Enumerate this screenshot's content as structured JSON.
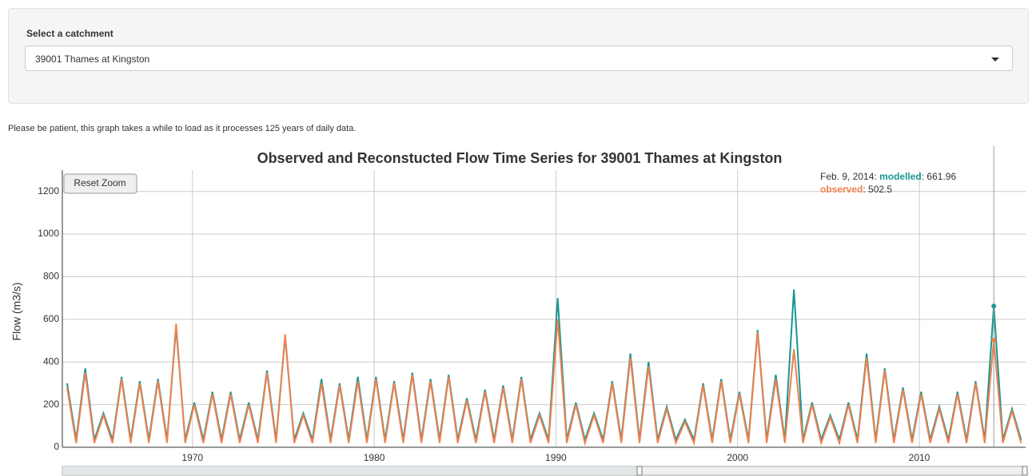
{
  "form": {
    "label": "Select a catchment",
    "selected": "39001 Thames at Kingston"
  },
  "note": "Please be patient, this graph takes a while to load as it processes 125 years of daily data.",
  "reset_button": "Reset Zoom",
  "hover_legend": {
    "date": "Feb. 9, 2014:",
    "items": [
      {
        "label": "modelled",
        "value": "661.96"
      },
      {
        "label": "observed",
        "value": "502.5"
      }
    ]
  },
  "chart_data": {
    "type": "line",
    "title": "Observed and Reconstucted Flow Time Series for 39001 Thames at Kingston",
    "y_label": "Flow (m3/s)",
    "x": [
      1963.1,
      1963.6,
      1964.1,
      1964.6,
      1965.1,
      1965.6,
      1966.1,
      1966.6,
      1967.1,
      1967.6,
      1968.1,
      1968.6,
      1969.1,
      1969.6,
      1970.1,
      1970.6,
      1971.1,
      1971.6,
      1972.1,
      1972.6,
      1973.1,
      1973.6,
      1974.1,
      1974.6,
      1975.1,
      1975.6,
      1976.1,
      1976.6,
      1977.1,
      1977.6,
      1978.1,
      1978.6,
      1979.1,
      1979.6,
      1980.1,
      1980.6,
      1981.1,
      1981.6,
      1982.1,
      1982.6,
      1983.1,
      1983.6,
      1984.1,
      1984.6,
      1985.1,
      1985.6,
      1986.1,
      1986.6,
      1987.1,
      1987.6,
      1988.1,
      1988.6,
      1989.1,
      1989.6,
      1990.1,
      1990.6,
      1991.1,
      1991.6,
      1992.1,
      1992.6,
      1993.1,
      1993.6,
      1994.1,
      1994.6,
      1995.1,
      1995.6,
      1996.1,
      1996.6,
      1997.1,
      1997.6,
      1998.1,
      1998.6,
      1999.1,
      1999.6,
      2000.1,
      2000.6,
      2001.1,
      2001.6,
      2002.1,
      2002.6,
      2003.1,
      2003.6,
      2004.1,
      2004.6,
      2005.1,
      2005.6,
      2006.1,
      2006.6,
      2007.1,
      2007.6,
      2008.1,
      2008.6,
      2009.1,
      2009.6,
      2010.1,
      2010.6,
      2011.1,
      2011.6,
      2012.1,
      2012.6,
      2013.1,
      2013.6,
      2014.1,
      2014.6,
      2015.1,
      2015.6
    ],
    "series": [
      {
        "name": "modelled",
        "color": "#1a9690",
        "values": [
          300,
          35,
          370,
          35,
          160,
          35,
          330,
          35,
          310,
          35,
          320,
          35,
          560,
          35,
          210,
          35,
          260,
          35,
          260,
          35,
          210,
          35,
          360,
          35,
          520,
          35,
          160,
          35,
          320,
          35,
          300,
          35,
          330,
          35,
          330,
          35,
          310,
          35,
          350,
          35,
          320,
          35,
          340,
          35,
          230,
          35,
          270,
          35,
          290,
          35,
          330,
          35,
          160,
          35,
          700,
          35,
          210,
          35,
          160,
          35,
          310,
          35,
          440,
          35,
          400,
          35,
          190,
          35,
          130,
          35,
          300,
          35,
          320,
          35,
          260,
          35,
          550,
          35,
          340,
          35,
          740,
          35,
          210,
          35,
          150,
          35,
          210,
          35,
          440,
          35,
          370,
          35,
          280,
          35,
          260,
          35,
          190,
          35,
          260,
          35,
          310,
          35,
          661.96,
          35,
          180,
          35
        ]
      },
      {
        "name": "observed",
        "color": "#f08050",
        "values": [
          280,
          20,
          350,
          20,
          150,
          20,
          320,
          20,
          300,
          20,
          310,
          20,
          580,
          20,
          200,
          20,
          250,
          20,
          250,
          20,
          200,
          20,
          350,
          20,
          530,
          20,
          150,
          20,
          300,
          20,
          290,
          20,
          310,
          20,
          320,
          20,
          300,
          20,
          340,
          20,
          310,
          20,
          330,
          20,
          220,
          20,
          260,
          20,
          280,
          20,
          320,
          20,
          150,
          20,
          600,
          20,
          200,
          20,
          150,
          20,
          300,
          20,
          420,
          20,
          380,
          20,
          180,
          20,
          120,
          20,
          290,
          20,
          310,
          20,
          250,
          20,
          540,
          20,
          320,
          20,
          460,
          20,
          200,
          20,
          140,
          20,
          200,
          20,
          420,
          20,
          360,
          20,
          270,
          20,
          250,
          20,
          180,
          20,
          250,
          20,
          300,
          20,
          502.5,
          20,
          170,
          20
        ]
      }
    ],
    "xlim": [
      1962.84,
      2015.85
    ],
    "xticks": [
      1970,
      1980,
      1990,
      2000,
      2010
    ],
    "ylim": [
      0,
      1300
    ],
    "yticks": [
      0,
      200,
      400,
      600,
      800,
      1000,
      1200
    ],
    "grid": true
  }
}
